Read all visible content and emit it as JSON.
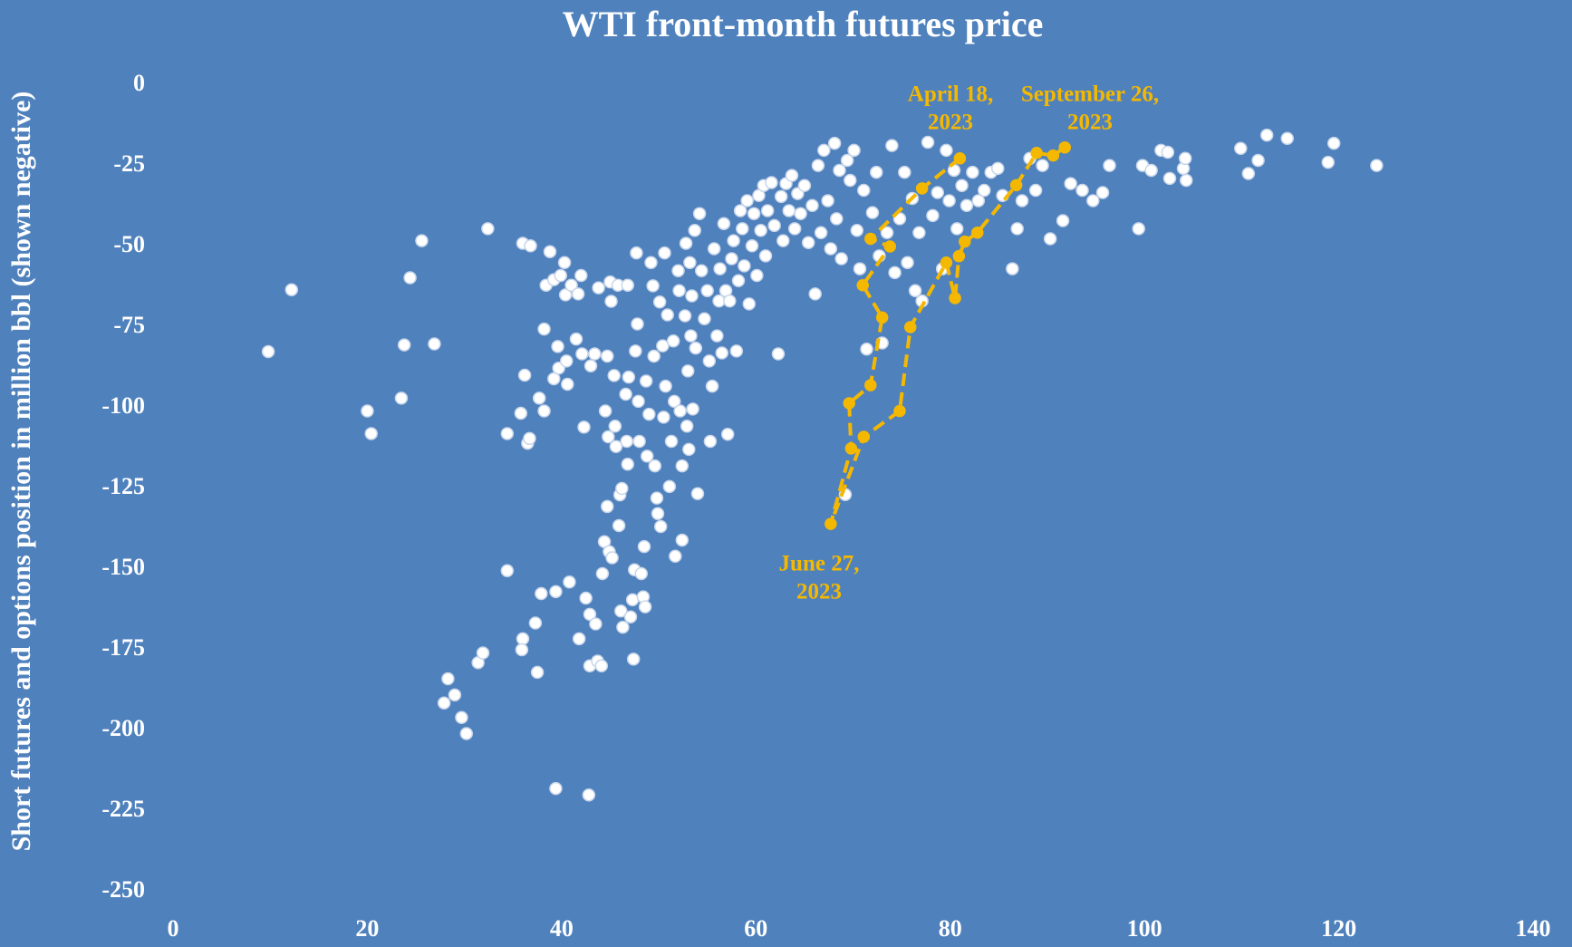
{
  "chart_data": {
    "type": "scatter",
    "title": "WTI front-month futures price",
    "y_label": "Short futures and options position in million bbl (shown negative)",
    "xlim": [
      0,
      140
    ],
    "ylim": [
      -250,
      0
    ],
    "xticks": [
      0,
      20,
      40,
      60,
      80,
      100,
      120,
      140
    ],
    "yticks": [
      0,
      -25,
      -50,
      -75,
      -100,
      -125,
      -150,
      -175,
      -200,
      -225,
      -250
    ],
    "series": [
      {
        "color": "#ffffff",
        "marker": "circle",
        "x": [
          9.8,
          12.2,
          20.0,
          20.4,
          23.5,
          23.8,
          24.4,
          25.6,
          26.9,
          32.4,
          28.3,
          27.9,
          29.0,
          29.7,
          30.2,
          31.4,
          31.9,
          34.4,
          34.4,
          35.8,
          36.2,
          36.0,
          35.9,
          36.5,
          36.7,
          36.0,
          36.8,
          37.3,
          37.5,
          37.7,
          37.9,
          38.2,
          38.2,
          38.4,
          38.8,
          39.2,
          39.2,
          39.4,
          39.4,
          39.6,
          39.7,
          39.9,
          40.3,
          40.4,
          40.5,
          40.6,
          40.8,
          41.0,
          41.5,
          41.7,
          41.8,
          42.0,
          42.1,
          42.3,
          42.5,
          42.8,
          42.9,
          42.9,
          43.0,
          43.4,
          43.5,
          43.7,
          43.8,
          44.1,
          44.2,
          44.4,
          44.5,
          44.7,
          44.7,
          44.8,
          44.9,
          45.0,
          45.1,
          45.2,
          45.4,
          45.5,
          45.6,
          45.8,
          45.9,
          46.0,
          46.1,
          46.2,
          46.3,
          46.6,
          46.7,
          46.8,
          46.8,
          46.9,
          47.1,
          47.3,
          47.4,
          47.5,
          47.6,
          47.7,
          47.8,
          47.9,
          48.0,
          48.2,
          48.4,
          48.5,
          48.6,
          48.7,
          48.8,
          49.0,
          49.2,
          49.4,
          49.5,
          49.6,
          49.8,
          49.9,
          50.1,
          50.2,
          50.4,
          50.5,
          50.6,
          50.7,
          50.9,
          51.1,
          51.3,
          51.5,
          51.6,
          51.7,
          52.0,
          52.1,
          52.2,
          52.4,
          52.4,
          52.7,
          52.8,
          52.9,
          53.0,
          53.1,
          53.2,
          53.3,
          53.4,
          53.5,
          53.7,
          53.8,
          54.0,
          54.2,
          54.4,
          54.7,
          55.0,
          55.2,
          55.3,
          55.5,
          55.7,
          56.0,
          56.2,
          56.3,
          56.5,
          56.7,
          56.9,
          57.1,
          57.3,
          57.5,
          57.7,
          58.0,
          58.2,
          58.4,
          58.6,
          58.8,
          59.1,
          59.3,
          59.6,
          59.8,
          60.1,
          60.3,
          60.5,
          60.8,
          61.0,
          61.2,
          61.6,
          61.9,
          62.3,
          62.6,
          62.8,
          63.1,
          63.4,
          63.7,
          64.0,
          64.3,
          64.6,
          65.0,
          65.4,
          65.8,
          66.1,
          66.4,
          66.7,
          67.0,
          67.4,
          67.7,
          68.1,
          68.3,
          68.6,
          68.8,
          69.2,
          69.4,
          69.7,
          70.1,
          70.4,
          70.7,
          71.1,
          71.4,
          72.0,
          72.4,
          72.7,
          73.0,
          73.5,
          74.0,
          74.3,
          74.8,
          75.3,
          75.6,
          76.1,
          76.4,
          76.8,
          77.1,
          77.7,
          78.2,
          78.7,
          79.2,
          79.6,
          79.9,
          80.4,
          80.7,
          81.2,
          81.7,
          82.3,
          82.9,
          83.5,
          84.2,
          84.9,
          85.4,
          86.4,
          86.9,
          87.4,
          88.2,
          88.8,
          89.5,
          90.3,
          91.6,
          92.4,
          93.6,
          94.7,
          95.7,
          96.4,
          99.4,
          99.8,
          100.7,
          101.7,
          102.4,
          102.6,
          104.0,
          104.2,
          104.3,
          109.9,
          110.7,
          111.7,
          112.6,
          114.7,
          118.9,
          119.5,
          123.9
        ],
        "values": [
          -82.6,
          -63.4,
          -101,
          -108,
          -97,
          -80.5,
          -59.7,
          -48.2,
          -80.2,
          -44.5,
          -184,
          -191.5,
          -189,
          -196,
          -201,
          -179,
          -176,
          -150.5,
          -108,
          -101.7,
          -89.9,
          -171.6,
          -175,
          -111,
          -109.5,
          -49,
          -49.8,
          -166.7,
          -182,
          -97,
          -157.6,
          -75.6,
          -101,
          -62,
          -51.6,
          -60.3,
          -91,
          -218,
          -157,
          -81,
          -87.7,
          -59,
          -55,
          -65,
          -85.5,
          -92.7,
          -154,
          -62,
          -78.7,
          -64.7,
          -171.6,
          -59,
          -83.3,
          -106,
          -159,
          -220,
          -164,
          -180,
          -87,
          -83.3,
          -167,
          -178.5,
          -62.8,
          -180,
          -151.4,
          -141.5,
          -101,
          -84,
          -130.6,
          -109,
          -144.6,
          -61,
          -67,
          -146.5,
          -90,
          -105.7,
          -112,
          -62,
          -136.5,
          -127,
          -163,
          -125,
          -168,
          -95.8,
          -110.4,
          -62,
          -117.5,
          -90.5,
          -164.8,
          -159.5,
          -177.9,
          -150.2,
          -82.4,
          -52,
          -74,
          -98,
          -110.4,
          -151.4,
          -158.6,
          -143,
          -161.7,
          -91.7,
          -115,
          -102,
          -55,
          -62.2,
          -84,
          -118,
          -128,
          -132.8,
          -67.2,
          -136.8,
          -80.8,
          -102.9,
          -52,
          -93.3,
          -71.2,
          -124.4,
          -110.4,
          -79.3,
          -98,
          -146,
          -57.5,
          -63.7,
          -101,
          -141,
          -118,
          -71.5,
          -49,
          -105.7,
          -88.6,
          -112.9,
          -55,
          -77.7,
          -65.3,
          -100.4,
          -45,
          -81.5,
          -126.6,
          -39.8,
          -57.5,
          -72.4,
          -63.7,
          -85.5,
          -110.4,
          -93.3,
          -50.7,
          -77.7,
          -66.9,
          -56.9,
          -83,
          -42.9,
          -63.7,
          -108.2,
          -66.9,
          -53.8,
          -48.2,
          -82.4,
          -60.6,
          -38.9,
          -44.5,
          -56,
          -35.8,
          -67.8,
          -49.8,
          -39.8,
          -59,
          -34.2,
          -45,
          -31.1,
          -52.9,
          -38.9,
          -30.2,
          -43.5,
          -83.3,
          -34.5,
          -48.2,
          -30.5,
          -38.9,
          -28,
          -44.5,
          -33.6,
          -39.8,
          -31.1,
          -48.8,
          -37.3,
          -64.7,
          -24.9,
          -45.7,
          -20.2,
          -35.8,
          -50.7,
          -18,
          -41.4,
          -26.4,
          -53.8,
          -126.9,
          -23.3,
          -29.5,
          -20.2,
          -45,
          -56.9,
          -32.6,
          -81.8,
          -39.5,
          -27,
          -52.9,
          -79.9,
          -45.7,
          -18.7,
          -58.1,
          -41.4,
          -27,
          -55,
          -35.1,
          -63.7,
          -45.7,
          -66.9,
          -17.7,
          -40.4,
          -33.3,
          -56.9,
          -20.2,
          -35.8,
          -26.4,
          -44.5,
          -31.1,
          -37.3,
          -27,
          -35.8,
          -32.6,
          -27,
          -25.8,
          -34.2,
          -56.9,
          -44.5,
          -35.8,
          -22.7,
          -32.6,
          -24.9,
          -47.6,
          -42,
          -30.5,
          -32.6,
          -35.8,
          -33.3,
          -24.9,
          -44.5,
          -24.9,
          -26.4,
          -20.2,
          -20.8,
          -28.9,
          -25.8,
          -22.7,
          -29.5,
          -19.6,
          -27.4,
          -23.3,
          -15.5,
          -16.5,
          -23.9,
          -18,
          -24.9
        ]
      },
      {
        "color": "#f5b800",
        "marker": "circle",
        "line": "dashed",
        "x": [
          81.0,
          77.1,
          71.8,
          73.8,
          71.0,
          73.0,
          71.8,
          69.6,
          69.8,
          67.7,
          71.1,
          74.8,
          75.9,
          79.6,
          80.5,
          80.9,
          81.5,
          82.8,
          86.8,
          88.9,
          90.6,
          91.8
        ],
        "values": [
          -22.7,
          -32,
          -47.6,
          -50,
          -62,
          -72,
          -93,
          -98.6,
          -112.6,
          -136,
          -109,
          -101,
          -75,
          -55,
          -66,
          -53,
          -48.5,
          -45.7,
          -31,
          -21,
          -21.8,
          -19.3
        ]
      }
    ],
    "annotations": [
      {
        "lines": [
          "April 18,",
          "2023"
        ]
      },
      {
        "lines": [
          "September 26,",
          "2023"
        ]
      },
      {
        "lines": [
          "June 27,",
          "2023"
        ]
      }
    ]
  }
}
